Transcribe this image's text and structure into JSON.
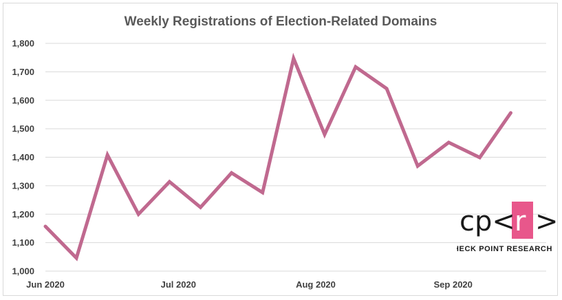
{
  "chart_data": {
    "type": "line",
    "title": "Weekly Registrations of Election-Related Domains",
    "xlabel": "",
    "ylabel": "",
    "ylim": [
      1000,
      1800
    ],
    "y_ticks": [
      "1,000",
      "1,100",
      "1,200",
      "1,300",
      "1,400",
      "1,500",
      "1,600",
      "1,700",
      "1,800"
    ],
    "y_tick_values": [
      1000,
      1100,
      1200,
      1300,
      1400,
      1500,
      1600,
      1700,
      1800
    ],
    "x_tick_labels": [
      "Jun 2020",
      "Jul 2020",
      "Aug 2020",
      "Sep 2020"
    ],
    "x_tick_dates": [
      "2020-06-01",
      "2020-07-01",
      "2020-08-01",
      "2020-09-01"
    ],
    "xlim": [
      "2020-06-01",
      "2020-09-22"
    ],
    "grid": true,
    "legend": "none",
    "series": [
      {
        "color": "#c0698f",
        "points": [
          {
            "x": "2020-06-01",
            "y": 1157
          },
          {
            "x": "2020-06-08",
            "y": 1046
          },
          {
            "x": "2020-06-15",
            "y": 1408
          },
          {
            "x": "2020-06-22",
            "y": 1200
          },
          {
            "x": "2020-06-29",
            "y": 1314
          },
          {
            "x": "2020-07-06",
            "y": 1224
          },
          {
            "x": "2020-07-13",
            "y": 1345
          },
          {
            "x": "2020-07-20",
            "y": 1276
          },
          {
            "x": "2020-07-27",
            "y": 1747
          },
          {
            "x": "2020-08-03",
            "y": 1480
          },
          {
            "x": "2020-08-10",
            "y": 1717
          },
          {
            "x": "2020-08-17",
            "y": 1641
          },
          {
            "x": "2020-08-24",
            "y": 1369
          },
          {
            "x": "2020-08-31",
            "y": 1452
          },
          {
            "x": "2020-09-07",
            "y": 1399
          },
          {
            "x": "2020-09-14",
            "y": 1556
          }
        ]
      }
    ]
  },
  "logo": {
    "mark_left": "cp<",
    "mark_box": "r",
    "mark_right": ">",
    "caption": "CHECK POINT RESEARCH",
    "box_color": "#e8578b"
  }
}
